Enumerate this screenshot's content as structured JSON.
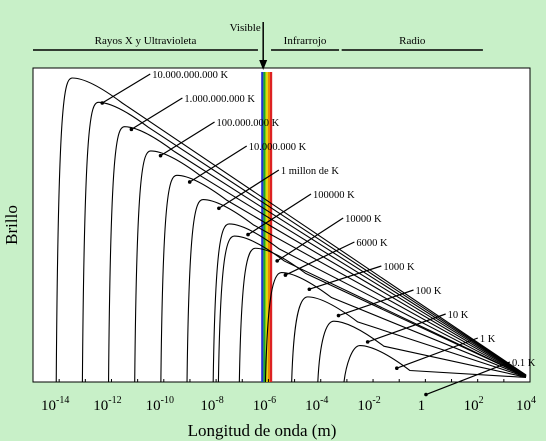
{
  "chart_data": {
    "type": "line",
    "title": "",
    "xlabel": "Longitud de onda (m)",
    "ylabel": "Brillo",
    "x_scale": "log",
    "xlim": [
      1e-15,
      10000.0
    ],
    "x_ticks": [
      {
        "exp": -14,
        "base": "10",
        "sup": "-14"
      },
      {
        "exp": -12,
        "base": "10",
        "sup": "-12"
      },
      {
        "exp": -10,
        "base": "10",
        "sup": "-10"
      },
      {
        "exp": -8,
        "base": "10",
        "sup": "-8"
      },
      {
        "exp": -6,
        "base": "10",
        "sup": "-6"
      },
      {
        "exp": -4,
        "base": "10",
        "sup": "-4"
      },
      {
        "exp": -2,
        "base": "10",
        "sup": "-2"
      },
      {
        "exp": 0,
        "base": "1",
        "sup": ""
      },
      {
        "exp": 2,
        "base": "10",
        "sup": "2"
      },
      {
        "exp": 4,
        "base": "10",
        "sup": "4"
      }
    ],
    "bands": [
      {
        "name": "Rayos X y Ultravioleta",
        "from": -15,
        "to": -6.4
      },
      {
        "name": "Visible",
        "at": -6.2
      },
      {
        "name": "Infrarrojo",
        "from": -5.9,
        "to": -3.3
      },
      {
        "name": "Radio",
        "from": -3.2,
        "to": 2.2
      }
    ],
    "visible_band_colors": [
      "#2233cc",
      "#22aa22",
      "#dddd00",
      "#ee8800",
      "#dd2222"
    ],
    "series": [
      {
        "name": "10.000.000.000 K",
        "peak_exp": -13.5,
        "peak_rel": 1.0
      },
      {
        "name": "1.000.000.000 K",
        "peak_exp": -12.5,
        "peak_rel": 0.92
      },
      {
        "name": "100.000.000 K",
        "peak_exp": -11.5,
        "peak_rel": 0.84
      },
      {
        "name": "10.000.000 K",
        "peak_exp": -10.5,
        "peak_rel": 0.76
      },
      {
        "name": "1 millon de K",
        "peak_exp": -9.5,
        "peak_rel": 0.68
      },
      {
        "name": "100000 K",
        "peak_exp": -8.5,
        "peak_rel": 0.6
      },
      {
        "name": "10000 K",
        "peak_exp": -7.5,
        "peak_rel": 0.52
      },
      {
        "name": "6000 K",
        "peak_exp": -7.3,
        "peak_rel": 0.48
      },
      {
        "name": "1000 K",
        "peak_exp": -6.5,
        "peak_rel": 0.44
      },
      {
        "name": "100 K",
        "peak_exp": -5.5,
        "peak_rel": 0.36
      },
      {
        "name": "10 K",
        "peak_exp": -4.5,
        "peak_rel": 0.28
      },
      {
        "name": "1 K",
        "peak_exp": -3.5,
        "peak_rel": 0.2
      },
      {
        "name": "0.1 K",
        "peak_exp": -2.5,
        "peak_rel": 0.12
      }
    ],
    "grid": false,
    "legend": "inline-arrows",
    "colors": {
      "background": "#c8f0c8",
      "plot_background": "#ffffff",
      "curve": "#000000"
    }
  }
}
